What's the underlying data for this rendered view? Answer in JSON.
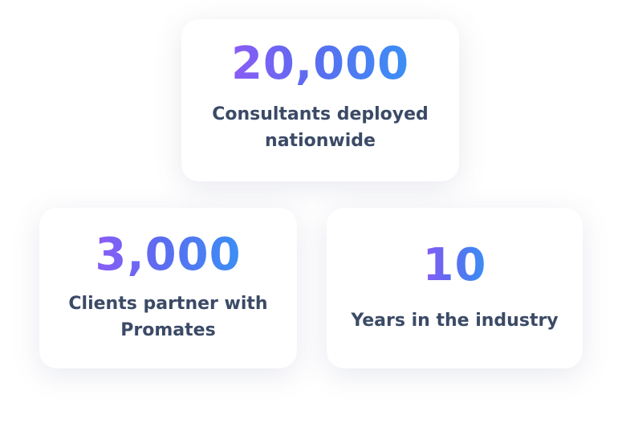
{
  "stats": [
    {
      "value": "20,000",
      "label": "Consultants deployed nationwide"
    },
    {
      "value": "3,000",
      "label": "Clients partner with Promates"
    },
    {
      "value": "10",
      "label": "Years in the industry"
    }
  ],
  "colors": {
    "gradient_start": "#8b5cf6",
    "gradient_end": "#3b8ff5",
    "label_text": "#3b4a66",
    "card_background": "#ffffff"
  }
}
